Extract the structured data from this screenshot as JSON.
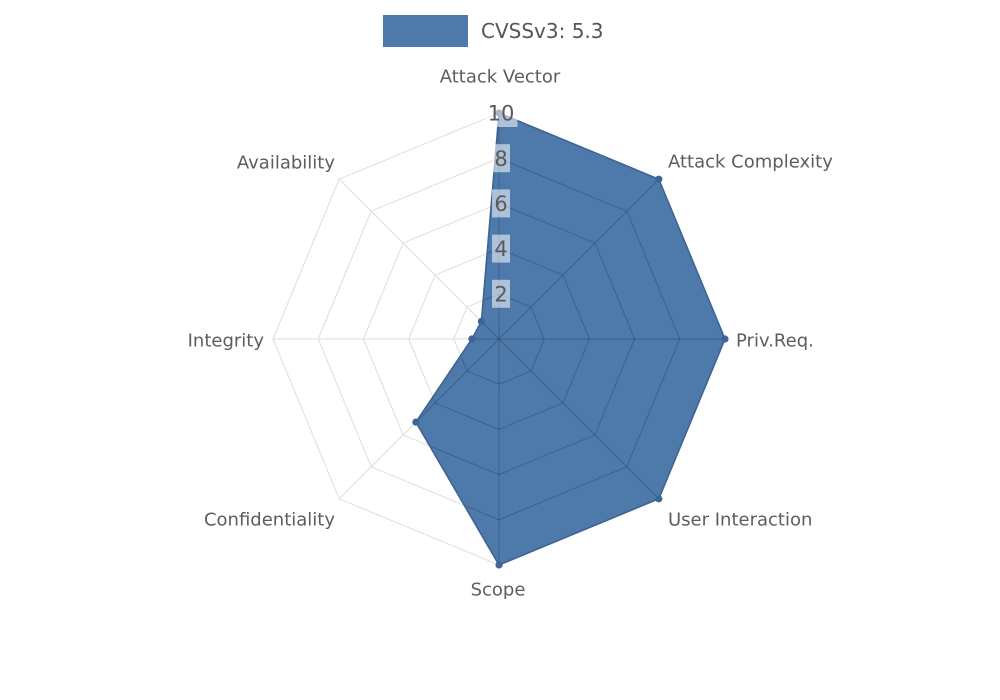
{
  "legend": {
    "label": "CVSSv3: 5.3",
    "swatch_color": "#4d79ab"
  },
  "chart_data": {
    "type": "radar",
    "categories": [
      "Attack Vector",
      "Attack Complexity",
      "Priv.Req.",
      "User Interaction",
      "Scope",
      "Confidentiality",
      "Integrity",
      "Availability"
    ],
    "series": [
      {
        "name": "CVSSv3: 5.3",
        "values": [
          10,
          10,
          10,
          10,
          10,
          5.2,
          1.2,
          1.1
        ]
      }
    ],
    "radial_ticks": [
      2,
      4,
      6,
      8,
      10
    ],
    "rmax": 10,
    "grid": true,
    "legend_position": "top",
    "colors": {
      "fill": "#4d79ab",
      "line": "#3d6494",
      "marker": "#3d6494",
      "grid_over_fill": "rgba(0,0,0,0.2)",
      "grid_outside": "#dedede",
      "axis_label_text": "#5d5d5d",
      "tick_text": "#5a5a5a",
      "tick_box": "rgba(255,255,255,0.55)",
      "background": "#ffffff"
    }
  }
}
